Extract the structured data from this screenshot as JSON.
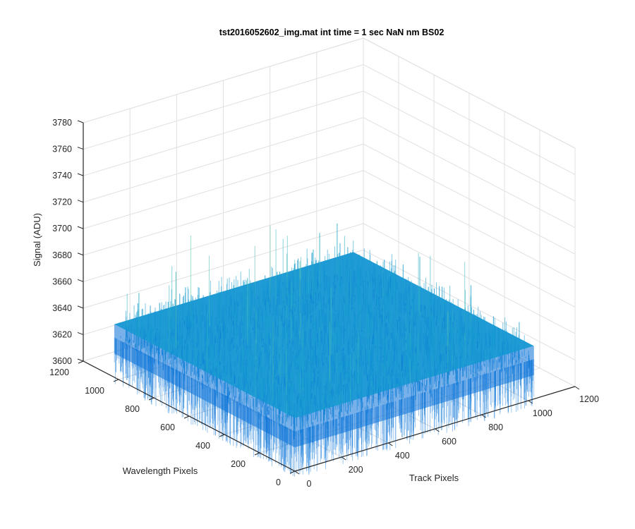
{
  "chart_data": {
    "type": "surface3d",
    "title": "tst2016052602_img.mat int time = 1 sec  NaN nm BS02",
    "xlabel": "Track Pixels",
    "ylabel": "Wavelength Pixels",
    "zlabel": "Signal (ADU)",
    "xlim": [
      0,
      1200
    ],
    "ylim": [
      0,
      1200
    ],
    "zlim": [
      3600,
      3780
    ],
    "xticks": [
      0,
      200,
      400,
      600,
      800,
      1000,
      1200
    ],
    "yticks": [
      0,
      200,
      400,
      600,
      800,
      1000,
      1200
    ],
    "zticks": [
      3600,
      3620,
      3640,
      3660,
      3680,
      3700,
      3720,
      3740,
      3760,
      3780
    ],
    "xtick_labels": [
      "0",
      "200",
      "400",
      "600",
      "800",
      "1000",
      "1200"
    ],
    "ytick_labels": [
      "0",
      "200",
      "400",
      "600",
      "800",
      "1000",
      "1200"
    ],
    "ztick_labels": [
      "3600",
      "3620",
      "3640",
      "3660",
      "3680",
      "3700",
      "3720",
      "3740",
      "3760",
      "3780"
    ],
    "surface": {
      "x_extent": [
        0,
        1024
      ],
      "y_extent": [
        0,
        1024
      ],
      "mean_signal": 3640,
      "noise_range": [
        3615,
        3700
      ],
      "colormap": "parula"
    },
    "grid": true,
    "box": true
  },
  "colors": {
    "surface_low": "#0a6fd9",
    "surface_mid": "#1496d3",
    "surface_high": "#2fb3c5",
    "surface_top": "#6cc89a",
    "grid": "#e0e0e0",
    "axis": "#262626"
  }
}
